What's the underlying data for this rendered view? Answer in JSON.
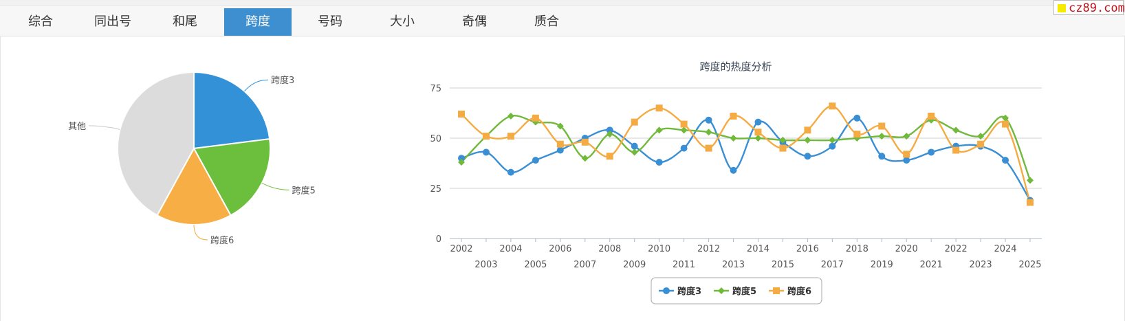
{
  "tabs": [
    {
      "label": "综合",
      "active": false
    },
    {
      "label": "同出号",
      "active": false
    },
    {
      "label": "和尾",
      "active": false
    },
    {
      "label": "跨度",
      "active": true
    },
    {
      "label": "号码",
      "active": false
    },
    {
      "label": "大小",
      "active": false
    },
    {
      "label": "奇偶",
      "active": false
    },
    {
      "label": "质合",
      "active": false
    }
  ],
  "logo": {
    "text": "cz89.com"
  },
  "colors": {
    "blue": "#3a8fd4",
    "green": "#70b93b",
    "orange": "#f5ab43",
    "gray": "#dadada",
    "tab_active": "#3e8fd0"
  },
  "chart_data": [
    {
      "type": "pie",
      "slices": [
        {
          "label": "跨度3",
          "value": 23,
          "color": "#3391d8"
        },
        {
          "label": "跨度5",
          "value": 19,
          "color": "#6cbf3c"
        },
        {
          "label": "跨度6",
          "value": 16,
          "color": "#f6ae45"
        },
        {
          "label": "其他",
          "value": 42,
          "color": "#dcdcdc"
        }
      ]
    },
    {
      "type": "line",
      "title": "跨度的热度分析",
      "x": [
        "2002",
        "2003",
        "2004",
        "2005",
        "2006",
        "2007",
        "2008",
        "2009",
        "2010",
        "2011",
        "2012",
        "2013",
        "2014",
        "2015",
        "2016",
        "2017",
        "2018",
        "2019",
        "2020",
        "2021",
        "2022",
        "2023",
        "2024",
        "2025"
      ],
      "ylim": [
        0,
        75
      ],
      "yticks": [
        0,
        25,
        50,
        75
      ],
      "grid": true,
      "legend": "bottom-center",
      "series": [
        {
          "name": "跨度3",
          "marker": "circle",
          "color": "#3a8fd4",
          "values": [
            40,
            43,
            33,
            39,
            44,
            50,
            54,
            46,
            38,
            45,
            59,
            34,
            58,
            48,
            41,
            46,
            60,
            41,
            39,
            43,
            46,
            46,
            39,
            19
          ]
        },
        {
          "name": "跨度5",
          "marker": "diamond",
          "color": "#70b93b",
          "values": [
            38,
            51,
            61,
            58,
            56,
            40,
            52,
            43,
            54,
            54,
            53,
            50,
            50,
            49,
            49,
            49,
            50,
            51,
            51,
            59,
            54,
            51,
            60,
            29
          ]
        },
        {
          "name": "跨度6",
          "marker": "square",
          "color": "#f5ab43",
          "values": [
            62,
            51,
            51,
            60,
            47,
            48,
            41,
            58,
            65,
            57,
            45,
            61,
            53,
            45,
            54,
            66,
            52,
            56,
            42,
            61,
            44,
            47,
            57,
            18
          ]
        }
      ]
    }
  ]
}
